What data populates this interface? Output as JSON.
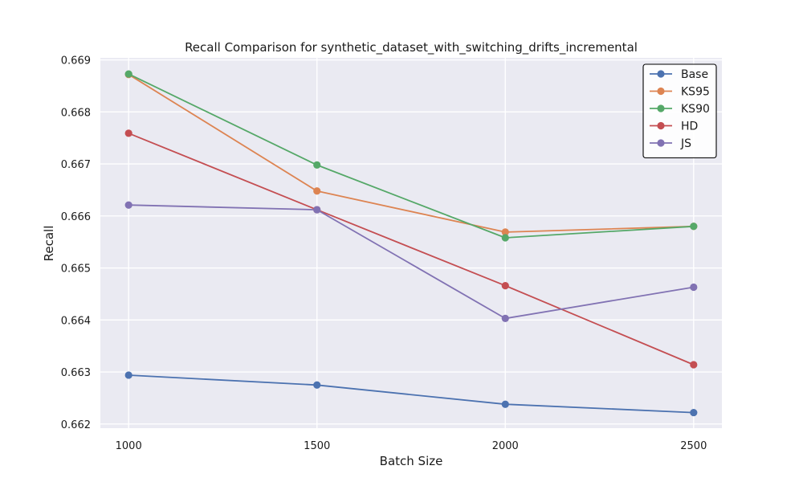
{
  "chart_data": {
    "type": "line",
    "title": "Recall Comparison for synthetic_dataset_with_switching_drifts_incremental",
    "xlabel": "Batch Size",
    "ylabel": "Recall",
    "x": [
      1000,
      1500,
      2000,
      2500
    ],
    "x_tick_labels": [
      "1000",
      "1500",
      "2000",
      "2500"
    ],
    "y_ticks": [
      0.662,
      0.663,
      0.664,
      0.665,
      0.666,
      0.667,
      0.668,
      0.669
    ],
    "y_tick_labels": [
      "0.662",
      "0.663",
      "0.664",
      "0.665",
      "0.666",
      "0.667",
      "0.668",
      "0.669"
    ],
    "ylim": [
      0.66192,
      0.66904
    ],
    "xlim": [
      925,
      2575
    ],
    "grid": true,
    "legend_position": "top-right",
    "series": [
      {
        "name": "Base",
        "color": "#4c72b0",
        "values": [
          0.66294,
          0.66275,
          0.66238,
          0.66222
        ]
      },
      {
        "name": "KS95",
        "color": "#dd8452",
        "values": [
          0.66872,
          0.66648,
          0.66569,
          0.6658
        ]
      },
      {
        "name": "KS90",
        "color": "#55a868",
        "values": [
          0.66873,
          0.66698,
          0.66558,
          0.6658
        ]
      },
      {
        "name": "HD",
        "color": "#c44e52",
        "values": [
          0.66759,
          0.66612,
          0.66466,
          0.66314
        ]
      },
      {
        "name": "JS",
        "color": "#8172b3",
        "values": [
          0.66621,
          0.66612,
          0.66403,
          0.66463
        ]
      }
    ]
  }
}
